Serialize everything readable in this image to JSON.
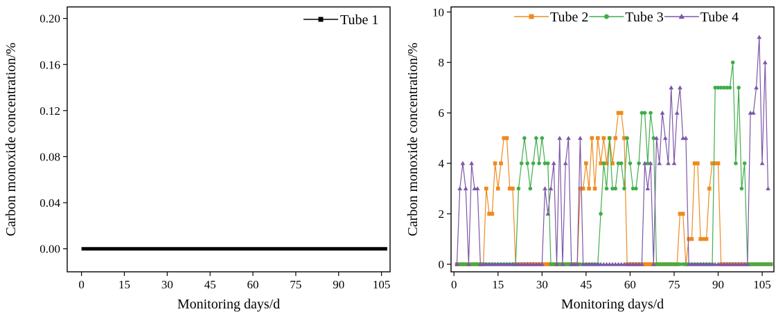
{
  "chart_data": [
    {
      "type": "line",
      "xlabel": "Monitoring days/d",
      "ylabel": "Carbon monoxide concentration/%",
      "xlim": [
        -5,
        108
      ],
      "ylim": [
        -0.02,
        0.21
      ],
      "xticks": [
        0,
        15,
        30,
        45,
        60,
        75,
        90,
        105
      ],
      "yticks": [
        0.0,
        0.04,
        0.08,
        0.12,
        0.16,
        0.2
      ],
      "ytick_labels": [
        "0.00",
        "0.04",
        "0.08",
        "0.12",
        "0.16",
        "0.20"
      ],
      "legend_position": "top-right",
      "series": [
        {
          "name": "Tube 1",
          "color": "#000000",
          "marker": "square",
          "x_start": 0,
          "x_step": 1,
          "y": [
            0,
            0,
            0,
            0,
            0,
            0,
            0,
            0,
            0,
            0,
            0,
            0,
            0,
            0,
            0,
            0,
            0,
            0,
            0,
            0,
            0,
            0,
            0,
            0,
            0,
            0,
            0,
            0,
            0,
            0,
            0,
            0,
            0,
            0,
            0,
            0,
            0,
            0,
            0,
            0,
            0,
            0,
            0,
            0,
            0,
            0,
            0,
            0,
            0,
            0,
            0,
            0,
            0,
            0,
            0,
            0,
            0,
            0,
            0,
            0,
            0,
            0,
            0,
            0,
            0,
            0,
            0,
            0,
            0,
            0,
            0,
            0,
            0,
            0,
            0,
            0,
            0,
            0,
            0,
            0,
            0,
            0,
            0,
            0,
            0,
            0,
            0,
            0,
            0,
            0,
            0,
            0,
            0,
            0,
            0,
            0,
            0,
            0,
            0,
            0,
            0,
            0,
            0,
            0,
            0,
            0,
            0,
            0
          ]
        }
      ]
    },
    {
      "type": "line",
      "xlabel": "Monitoring days/d",
      "ylabel": "Carbon monoxide concentration/%",
      "xlim": [
        -1,
        109
      ],
      "ylim": [
        -0.3,
        10.2
      ],
      "xticks": [
        0,
        15,
        30,
        45,
        60,
        75,
        90,
        105
      ],
      "yticks": [
        0,
        2,
        4,
        6,
        8,
        10
      ],
      "ytick_labels": [
        "0",
        "2",
        "4",
        "6",
        "8",
        "10"
      ],
      "legend_position": "top-center",
      "series": [
        {
          "name": "Tube 2",
          "color": "#ee8a1f",
          "marker": "square",
          "x_start": 1,
          "x_step": 1,
          "y": [
            0,
            0,
            0,
            0,
            0,
            0,
            0,
            0,
            0,
            0,
            3,
            2,
            2,
            4,
            3,
            4,
            5,
            5,
            3,
            3,
            0,
            0,
            0,
            0,
            0,
            0,
            0,
            0,
            0,
            0,
            0,
            0,
            0,
            0,
            0,
            0,
            0,
            0,
            0,
            0,
            0,
            0,
            3,
            3,
            4,
            3,
            5,
            3,
            5,
            4,
            5,
            4,
            5,
            4,
            5,
            6,
            6,
            5,
            0,
            0,
            0,
            0,
            0,
            0,
            0,
            0,
            0,
            0,
            0,
            0,
            0,
            0,
            0,
            0,
            0,
            0,
            2,
            2,
            0,
            1,
            1,
            4,
            4,
            1,
            1,
            1,
            3,
            4,
            4,
            4,
            0,
            0,
            0,
            0,
            0,
            0,
            0,
            0,
            0,
            0,
            0,
            0,
            0,
            0,
            0,
            0,
            0,
            0
          ]
        },
        {
          "name": "Tube 3",
          "color": "#3fae49",
          "marker": "circle",
          "x_start": 1,
          "x_step": 1,
          "y": [
            0,
            0,
            0,
            0,
            0,
            0,
            0,
            0,
            0,
            0,
            0,
            0,
            0,
            0,
            0,
            0,
            0,
            0,
            0,
            0,
            0,
            3,
            4,
            5,
            4,
            3,
            4,
            5,
            4,
            5,
            4,
            4,
            0,
            0,
            0,
            0,
            0,
            0,
            0,
            0,
            0,
            0,
            0,
            0,
            0,
            0,
            0,
            0,
            0,
            2,
            4,
            3,
            5,
            3,
            3,
            4,
            4,
            3,
            5,
            4,
            3,
            3,
            4,
            6,
            6,
            4,
            6,
            5,
            0,
            0,
            0,
            0,
            0,
            0,
            0,
            0,
            0,
            0,
            0,
            0,
            0,
            0,
            0,
            0,
            0,
            0,
            0,
            0,
            7,
            7,
            7,
            7,
            7,
            7,
            8,
            4,
            7,
            3,
            4,
            0,
            0,
            0,
            0,
            0,
            0,
            0,
            0,
            0
          ]
        },
        {
          "name": "Tube 4",
          "color": "#7d55a8",
          "marker": "triangle",
          "x_start": 1,
          "x_step": 1,
          "y": [
            0,
            3,
            4,
            3,
            0,
            4,
            3,
            3,
            0,
            0,
            0,
            0,
            0,
            0,
            0,
            0,
            0,
            0,
            0,
            0,
            0,
            0,
            0,
            0,
            0,
            0,
            0,
            0,
            0,
            0,
            3,
            2,
            3,
            4,
            0,
            5,
            0,
            4,
            5,
            0,
            0,
            0,
            5,
            0,
            0,
            0,
            0,
            0,
            0,
            0,
            0,
            0,
            0,
            0,
            0,
            0,
            0,
            0,
            0,
            0,
            0,
            0,
            0,
            0,
            4,
            3,
            4,
            0,
            5,
            4,
            6,
            5,
            4,
            7,
            4,
            6,
            7,
            5,
            5,
            0,
            0,
            0,
            0,
            0,
            0,
            0,
            0,
            0,
            0,
            0,
            0,
            0,
            0,
            0,
            0,
            0,
            0,
            0,
            0,
            0,
            6,
            6,
            7,
            9,
            4,
            8,
            3
          ]
        }
      ]
    }
  ]
}
